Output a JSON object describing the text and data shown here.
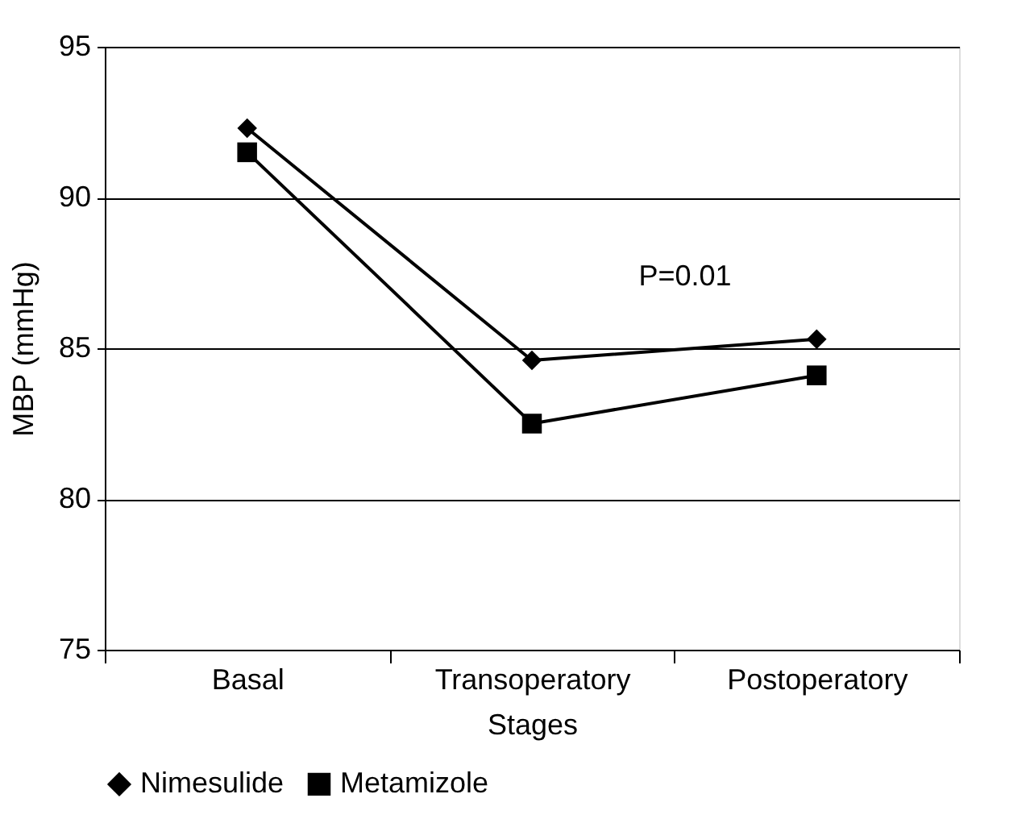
{
  "chart_data": {
    "type": "line",
    "xlabel": "Stages",
    "ylabel": "MBP (mmHg)",
    "categories": [
      "Basal",
      "Transoperatory",
      "Postoperatory"
    ],
    "series": [
      {
        "name": "Nimesulide",
        "color": "#000000",
        "marker": "diamond",
        "values": [
          92.3,
          84.6,
          85.3
        ]
      },
      {
        "name": "Metamizole",
        "color": "#000000",
        "marker": "square",
        "values": [
          91.5,
          82.5,
          84.1
        ]
      }
    ],
    "ylim": [
      75,
      95
    ],
    "yticks": [
      75,
      80,
      85,
      90,
      95
    ],
    "grid": "y",
    "legend": "bottom",
    "line_style": "solid",
    "annotations": [
      "P=0.01"
    ]
  }
}
